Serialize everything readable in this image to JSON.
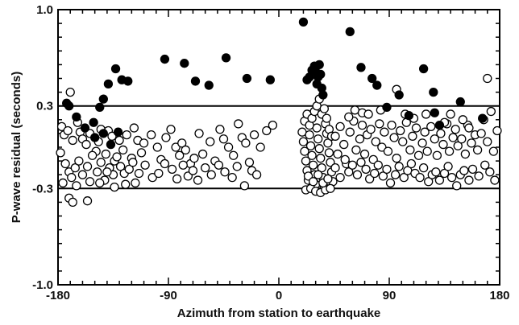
{
  "chart_data": {
    "type": "scatter",
    "title": "",
    "xlabel": "Azimuth from station to earthquake",
    "ylabel": "P-wave residual (seconds)",
    "xlim": [
      -180,
      180
    ],
    "ylim": [
      -1.0,
      1.0
    ],
    "x_ticks": [
      -180,
      -90,
      0,
      90,
      180
    ],
    "x_tick_labels": [
      "-180",
      "-90",
      "0",
      "90",
      "180"
    ],
    "y_ticks": [
      -1.0,
      -0.3,
      0.3,
      1.0
    ],
    "y_tick_labels": [
      "-1.0",
      "-0.3",
      "0.3",
      "1.0"
    ],
    "x_minor_step": 10,
    "y_minor_step": 0.1,
    "reference_lines_y": [
      0.3,
      -0.3
    ],
    "grid": false,
    "colors": {
      "filled": "#000000",
      "open_stroke": "#000000",
      "open_fill": "#ffffff"
    },
    "series": [
      {
        "marker": "filled-circle",
        "points": [
          [
            -173,
            0.32
          ],
          [
            -171,
            0.3
          ],
          [
            -165,
            0.22
          ],
          [
            -158,
            0.14
          ],
          [
            -151,
            0.18
          ],
          [
            -146,
            0.29
          ],
          [
            -143,
            0.35
          ],
          [
            -139,
            0.46
          ],
          [
            -133,
            0.57
          ],
          [
            -128,
            0.49
          ],
          [
            -123,
            0.48
          ],
          [
            -93,
            0.64
          ],
          [
            -77,
            0.61
          ],
          [
            -68,
            0.48
          ],
          [
            -57,
            0.45
          ],
          [
            -43,
            0.65
          ],
          [
            -26,
            0.5
          ],
          [
            -7,
            0.49
          ],
          [
            20,
            0.91
          ],
          [
            23,
            0.49
          ],
          [
            25,
            0.51
          ],
          [
            27,
            0.56
          ],
          [
            29,
            0.59
          ],
          [
            30,
            0.55
          ],
          [
            31,
            0.46
          ],
          [
            32,
            0.51
          ],
          [
            33,
            0.6
          ],
          [
            34,
            0.53
          ],
          [
            35,
            0.43
          ],
          [
            36,
            0.38
          ],
          [
            58,
            0.84
          ],
          [
            67,
            0.58
          ],
          [
            76,
            0.5
          ],
          [
            80,
            0.45
          ],
          [
            88,
            0.29
          ],
          [
            98,
            0.38
          ],
          [
            106,
            0.23
          ],
          [
            118,
            0.57
          ],
          [
            126,
            0.4
          ],
          [
            127,
            0.25
          ],
          [
            131,
            0.16
          ],
          [
            148,
            0.33
          ],
          [
            166,
            0.21
          ],
          [
            -150,
            0.07
          ],
          [
            -143,
            0.1
          ],
          [
            -137,
            0.02
          ],
          [
            -131,
            0.11
          ]
        ]
      },
      {
        "marker": "open-circle",
        "points": [
          [
            -170,
            0.4
          ],
          [
            -177,
            0.15
          ],
          [
            -175,
            0.09
          ],
          [
            -172,
            0.12
          ],
          [
            -168,
            0.05
          ],
          [
            -164,
            0.18
          ],
          [
            -162,
            0.11
          ],
          [
            -160,
            0.06
          ],
          [
            -157,
            0.02
          ],
          [
            -154,
            0.1
          ],
          [
            -149,
            -0.03
          ],
          [
            -147,
            0.04
          ],
          [
            -145,
            0.13
          ],
          [
            -141,
            -0.05
          ],
          [
            -139,
            0.12
          ],
          [
            -136,
            0.08
          ],
          [
            -134,
            -0.1
          ],
          [
            -130,
            0.05
          ],
          [
            -127,
            -0.02
          ],
          [
            -124,
            0.09
          ],
          [
            -120,
            -0.08
          ],
          [
            -118,
            0.14
          ],
          [
            -115,
            0.05
          ],
          [
            -112,
            -0.04
          ],
          [
            -110,
            0.03
          ],
          [
            -104,
            0.09
          ],
          [
            -99,
            0.0
          ],
          [
            -96,
            -0.09
          ],
          [
            -92,
            0.07
          ],
          [
            -88,
            0.13
          ],
          [
            -84,
            0.0
          ],
          [
            -81,
            -0.06
          ],
          [
            -79,
            0.03
          ],
          [
            -76,
            -0.02
          ],
          [
            -72,
            -0.12
          ],
          [
            -69,
            -0.08
          ],
          [
            -65,
            0.1
          ],
          [
            -62,
            -0.05
          ],
          [
            -56,
            0.04
          ],
          [
            -52,
            -0.1
          ],
          [
            -48,
            0.13
          ],
          [
            -45,
            0.06
          ],
          [
            -41,
            0.0
          ],
          [
            -37,
            -0.06
          ],
          [
            -33,
            0.17
          ],
          [
            -30,
            0.07
          ],
          [
            -27,
            0.03
          ],
          [
            -24,
            -0.11
          ],
          [
            -20,
            0.09
          ],
          [
            -15,
            0.0
          ],
          [
            -10,
            0.12
          ],
          [
            -5,
            0.16
          ],
          [
            -178,
            -0.04
          ],
          [
            -174,
            -0.12
          ],
          [
            -171,
            -0.18
          ],
          [
            -169,
            -0.22
          ],
          [
            -166,
            -0.15
          ],
          [
            -163,
            -0.1
          ],
          [
            -160,
            -0.2
          ],
          [
            -156,
            -0.14
          ],
          [
            -152,
            -0.06
          ],
          [
            -148,
            -0.18
          ],
          [
            -145,
            -0.11
          ],
          [
            -142,
            -0.24
          ],
          [
            -138,
            -0.15
          ],
          [
            -135,
            -0.2
          ],
          [
            -132,
            -0.07
          ],
          [
            -129,
            -0.14
          ],
          [
            -126,
            -0.19
          ],
          [
            -122,
            -0.16
          ],
          [
            -119,
            -0.11
          ],
          [
            -114,
            -0.19
          ],
          [
            -109,
            -0.13
          ],
          [
            -103,
            -0.22
          ],
          [
            -98,
            -0.19
          ],
          [
            -93,
            -0.12
          ],
          [
            -87,
            -0.16
          ],
          [
            -83,
            -0.23
          ],
          [
            -78,
            -0.13
          ],
          [
            -74,
            -0.21
          ],
          [
            -70,
            -0.17
          ],
          [
            -66,
            -0.24
          ],
          [
            -60,
            -0.15
          ],
          [
            -55,
            -0.2
          ],
          [
            -49,
            -0.13
          ],
          [
            -44,
            -0.18
          ],
          [
            -38,
            -0.22
          ],
          [
            -34,
            -0.14
          ],
          [
            -28,
            -0.28
          ],
          [
            -22,
            -0.17
          ],
          [
            -18,
            -0.2
          ],
          [
            -171,
            -0.37
          ],
          [
            -168,
            -0.4
          ],
          [
            -156,
            -0.39
          ],
          [
            -176,
            -0.26
          ],
          [
            -165,
            -0.28
          ],
          [
            -154,
            -0.25
          ],
          [
            -146,
            -0.26
          ],
          [
            -140,
            -0.18
          ],
          [
            -134,
            -0.29
          ],
          [
            -125,
            -0.27
          ],
          [
            -117,
            -0.26
          ],
          [
            19,
            0.11
          ],
          [
            20,
            0.04
          ],
          [
            21,
            -0.03
          ],
          [
            22,
            -0.1
          ],
          [
            23,
            -0.17
          ],
          [
            24,
            -0.24
          ],
          [
            25,
            0.09
          ],
          [
            26,
            0.01
          ],
          [
            27,
            -0.06
          ],
          [
            28,
            -0.13
          ],
          [
            29,
            -0.2
          ],
          [
            30,
            -0.27
          ],
          [
            31,
            0.14
          ],
          [
            32,
            0.06
          ],
          [
            33,
            -0.01
          ],
          [
            34,
            -0.08
          ],
          [
            35,
            -0.15
          ],
          [
            36,
            -0.22
          ],
          [
            37,
            -0.29
          ],
          [
            38,
            0.17
          ],
          [
            39,
            0.1
          ],
          [
            40,
            0.03
          ],
          [
            41,
            -0.04
          ],
          [
            42,
            -0.11
          ],
          [
            43,
            -0.18
          ],
          [
            44,
            -0.25
          ],
          [
            21,
            0.19
          ],
          [
            23,
            0.24
          ],
          [
            25,
            0.16
          ],
          [
            27,
            0.21
          ],
          [
            29,
            0.26
          ],
          [
            31,
            0.3
          ],
          [
            33,
            0.35
          ],
          [
            35,
            0.24
          ],
          [
            37,
            0.28
          ],
          [
            39,
            0.21
          ],
          [
            41,
            0.13
          ],
          [
            43,
            0.08
          ],
          [
            22,
            -0.31
          ],
          [
            26,
            -0.3
          ],
          [
            30,
            -0.32
          ],
          [
            34,
            -0.33
          ],
          [
            38,
            -0.31
          ],
          [
            42,
            -0.3
          ],
          [
            24,
            -0.21
          ],
          [
            28,
            -0.25
          ],
          [
            32,
            -0.2
          ],
          [
            36,
            -0.26
          ],
          [
            40,
            -0.23
          ],
          [
            46,
            0.08
          ],
          [
            48,
            -0.05
          ],
          [
            50,
            0.15
          ],
          [
            53,
            0.02
          ],
          [
            55,
            -0.12
          ],
          [
            58,
            0.11
          ],
          [
            61,
            0.19
          ],
          [
            63,
            -0.02
          ],
          [
            66,
            0.06
          ],
          [
            68,
            0.16
          ],
          [
            70,
            -0.05
          ],
          [
            72,
            0.09
          ],
          [
            75,
            0.13
          ],
          [
            77,
            -0.09
          ],
          [
            79,
            0.04
          ],
          [
            82,
            0.17
          ],
          [
            84,
            0.0
          ],
          [
            86,
            0.11
          ],
          [
            89,
            -0.03
          ],
          [
            92,
            0.16
          ],
          [
            94,
            0.07
          ],
          [
            96,
            -0.08
          ],
          [
            99,
            0.12
          ],
          [
            101,
            0.04
          ],
          [
            104,
            0.18
          ],
          [
            107,
            -0.02
          ],
          [
            109,
            0.08
          ],
          [
            112,
            0.14
          ],
          [
            114,
            -0.06
          ],
          [
            117,
            0.03
          ],
          [
            119,
            0.11
          ],
          [
            121,
            -0.03
          ],
          [
            124,
            0.15
          ],
          [
            127,
            0.06
          ],
          [
            129,
            -0.06
          ],
          [
            132,
            0.1
          ],
          [
            134,
            0.02
          ],
          [
            137,
            0.17
          ],
          [
            139,
            -0.03
          ],
          [
            142,
            0.07
          ],
          [
            144,
            0.13
          ],
          [
            146,
            0.01
          ],
          [
            149,
            0.06
          ],
          [
            152,
            -0.05
          ],
          [
            154,
            0.16
          ],
          [
            157,
            0.03
          ],
          [
            160,
            0.09
          ],
          [
            162,
            -0.02
          ],
          [
            165,
            0.1
          ],
          [
            167,
            0.2
          ],
          [
            170,
            0.04
          ],
          [
            173,
            0.26
          ],
          [
            175,
            -0.03
          ],
          [
            178,
            0.12
          ],
          [
            46,
            -0.15
          ],
          [
            50,
            -0.22
          ],
          [
            54,
            -0.09
          ],
          [
            57,
            -0.18
          ],
          [
            60,
            -0.13
          ],
          [
            64,
            -0.2
          ],
          [
            67,
            -0.11
          ],
          [
            71,
            -0.16
          ],
          [
            74,
            -0.23
          ],
          [
            78,
            -0.19
          ],
          [
            81,
            -0.13
          ],
          [
            85,
            -0.21
          ],
          [
            88,
            -0.16
          ],
          [
            91,
            -0.26
          ],
          [
            95,
            -0.2
          ],
          [
            98,
            -0.14
          ],
          [
            102,
            -0.22
          ],
          [
            105,
            -0.17
          ],
          [
            108,
            -0.12
          ],
          [
            111,
            -0.19
          ],
          [
            115,
            -0.22
          ],
          [
            118,
            -0.15
          ],
          [
            122,
            -0.25
          ],
          [
            125,
            -0.2
          ],
          [
            128,
            -0.18
          ],
          [
            131,
            -0.24
          ],
          [
            135,
            -0.19
          ],
          [
            138,
            -0.14
          ],
          [
            141,
            -0.22
          ],
          [
            145,
            -0.28
          ],
          [
            148,
            -0.2
          ],
          [
            151,
            -0.17
          ],
          [
            155,
            -0.24
          ],
          [
            158,
            -0.16
          ],
          [
            163,
            -0.21
          ],
          [
            168,
            -0.13
          ],
          [
            172,
            -0.18
          ],
          [
            176,
            -0.24
          ],
          [
            57,
            0.22
          ],
          [
            62,
            0.27
          ],
          [
            68,
            0.25
          ],
          [
            73,
            0.24
          ],
          [
            83,
            0.27
          ],
          [
            96,
            0.42
          ],
          [
            103,
            0.24
          ],
          [
            110,
            0.21
          ],
          [
            140,
            0.24
          ],
          [
            170,
            0.5
          ],
          [
            150,
            0.2
          ],
          [
            155,
            0.14
          ],
          [
            120,
            0.24
          ],
          [
            135,
            0.18
          ]
        ]
      }
    ]
  }
}
